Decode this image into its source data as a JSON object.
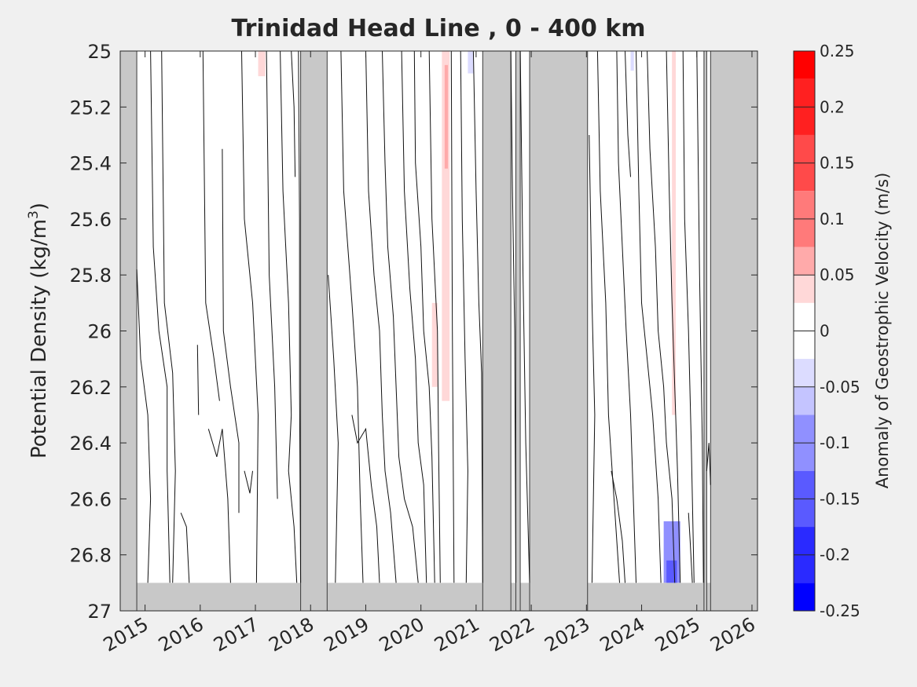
{
  "chart_data": {
    "type": "heatmap",
    "title": "Trinidad Head Line , 0 - 400 km",
    "ylabel_main": "Potential Density (kg/m",
    "ylabel_sup": "3",
    "ylabel_tail": ")",
    "colorbar_label": "Anomaly of Geostrophic Velocity (m/s)",
    "xlim": [
      2014.55,
      2026.1
    ],
    "ylim": [
      25,
      27
    ],
    "y_reversed": true,
    "x_ticks": [
      2015,
      2016,
      2017,
      2018,
      2019,
      2020,
      2021,
      2022,
      2023,
      2024,
      2025,
      2026
    ],
    "x_tick_labels": [
      "2015",
      "2016",
      "2017",
      "2018",
      "2019",
      "2020",
      "2021",
      "2022",
      "2023",
      "2024",
      "2025",
      "2026"
    ],
    "y_ticks": [
      25,
      25.2,
      25.4,
      25.6,
      25.8,
      26,
      26.2,
      26.4,
      26.6,
      26.8,
      27
    ],
    "y_tick_labels": [
      "25",
      "25.2",
      "25.4",
      "25.6",
      "25.8",
      "26",
      "26.2",
      "26.4",
      "26.6",
      "26.8",
      "27"
    ],
    "colorbar": {
      "range": [
        -0.25,
        0.25
      ],
      "ticks": [
        0.25,
        0.2,
        0.15,
        0.1,
        0.05,
        0,
        -0.05,
        -0.1,
        -0.15,
        -0.2,
        -0.25
      ],
      "tick_labels": [
        "0.25",
        "0.2",
        "0.15",
        "0.1",
        "0.05",
        "0",
        "-0.05",
        "-0.1",
        "-0.15",
        "-0.2",
        "-0.25"
      ],
      "levels": [
        {
          "from": 0.225,
          "to": 0.25,
          "color": "#ff0000"
        },
        {
          "from": 0.175,
          "to": 0.225,
          "color": "#ff2020"
        },
        {
          "from": 0.125,
          "to": 0.175,
          "color": "#ff4a4a"
        },
        {
          "from": 0.075,
          "to": 0.125,
          "color": "#ff7a7a"
        },
        {
          "from": 0.05,
          "to": 0.075,
          "color": "#ffaaaa"
        },
        {
          "from": 0.025,
          "to": 0.05,
          "color": "#ffd8d8"
        },
        {
          "from": -0.025,
          "to": 0.025,
          "color": "#ffffff"
        },
        {
          "from": -0.05,
          "to": -0.025,
          "color": "#dcdcff"
        },
        {
          "from": -0.075,
          "to": -0.05,
          "color": "#c4c4ff"
        },
        {
          "from": -0.125,
          "to": -0.075,
          "color": "#9090ff"
        },
        {
          "from": -0.175,
          "to": -0.125,
          "color": "#5a5aff"
        },
        {
          "from": -0.225,
          "to": -0.175,
          "color": "#2a2aff"
        },
        {
          "from": -0.25,
          "to": -0.225,
          "color": "#0000ff"
        }
      ]
    },
    "no_data_color": "#c8c8c8",
    "no_data_density_floor": 26.9,
    "no_data_periods": [
      [
        2014.55,
        2014.85
      ],
      [
        2017.82,
        2018.3
      ],
      [
        2021.12,
        2021.63
      ],
      [
        2021.72,
        2021.8
      ],
      [
        2021.97,
        2023.02
      ],
      [
        2025.13,
        2025.18
      ],
      [
        2025.25,
        2026.1
      ]
    ],
    "anomaly_patches": [
      {
        "x0": 2017.05,
        "x1": 2017.18,
        "y0": 25.0,
        "y1": 25.09,
        "value": 0.04
      },
      {
        "x0": 2020.2,
        "x1": 2020.3,
        "y0": 25.9,
        "y1": 26.2,
        "value": 0.03
      },
      {
        "x0": 2020.38,
        "x1": 2020.52,
        "y0": 25.0,
        "y1": 26.25,
        "value": 0.04
      },
      {
        "x0": 2020.43,
        "x1": 2020.49,
        "y0": 25.05,
        "y1": 25.42,
        "value": 0.06
      },
      {
        "x0": 2020.85,
        "x1": 2020.95,
        "y0": 25.0,
        "y1": 25.08,
        "value": -0.04
      },
      {
        "x0": 2023.8,
        "x1": 2023.86,
        "y0": 25.0,
        "y1": 25.07,
        "value": -0.04
      },
      {
        "x0": 2024.55,
        "x1": 2024.62,
        "y0": 25.0,
        "y1": 26.3,
        "value": 0.03
      },
      {
        "x0": 2024.4,
        "x1": 2024.7,
        "y0": 26.68,
        "y1": 26.9,
        "value": -0.08
      },
      {
        "x0": 2024.45,
        "x1": 2024.64,
        "y0": 26.82,
        "y1": 26.9,
        "value": -0.14
      }
    ],
    "zero_contours": [
      [
        [
          2014.85,
          25.78
        ],
        [
          2014.92,
          26.1
        ],
        [
          2015.05,
          26.3
        ],
        [
          2015.1,
          26.6
        ],
        [
          2015.05,
          26.9
        ]
      ],
      [
        [
          2015.1,
          25.0
        ],
        [
          2015.15,
          25.7
        ],
        [
          2015.25,
          26.0
        ],
        [
          2015.4,
          26.2
        ],
        [
          2015.4,
          26.5
        ],
        [
          2015.45,
          26.9
        ]
      ],
      [
        [
          2015.3,
          25.0
        ],
        [
          2015.35,
          25.9
        ],
        [
          2015.5,
          26.15
        ],
        [
          2015.55,
          26.5
        ],
        [
          2015.5,
          26.9
        ]
      ],
      [
        [
          2015.65,
          26.65
        ],
        [
          2015.75,
          26.7
        ],
        [
          2015.8,
          26.9
        ]
      ],
      [
        [
          2015.95,
          26.05
        ],
        [
          2015.97,
          26.3
        ]
      ],
      [
        [
          2016.15,
          26.35
        ],
        [
          2016.3,
          26.45
        ],
        [
          2016.4,
          26.35
        ],
        [
          2016.5,
          26.6
        ],
        [
          2016.55,
          26.9
        ]
      ],
      [
        [
          2016.05,
          25.0
        ],
        [
          2016.1,
          25.9
        ],
        [
          2016.25,
          26.1
        ],
        [
          2016.35,
          26.25
        ]
      ],
      [
        [
          2016.4,
          25.35
        ],
        [
          2016.42,
          26.0
        ],
        [
          2016.55,
          26.2
        ],
        [
          2016.7,
          26.4
        ],
        [
          2016.7,
          26.65
        ]
      ],
      [
        [
          2016.75,
          25.0
        ],
        [
          2016.8,
          25.6
        ],
        [
          2016.95,
          25.9
        ],
        [
          2017.05,
          26.3
        ],
        [
          2017.02,
          26.9
        ]
      ],
      [
        [
          2016.8,
          26.5
        ],
        [
          2016.9,
          26.58
        ],
        [
          2016.95,
          26.5
        ]
      ],
      [
        [
          2017.2,
          25.0
        ],
        [
          2017.25,
          25.8
        ],
        [
          2017.35,
          26.2
        ],
        [
          2017.4,
          26.6
        ]
      ],
      [
        [
          2017.45,
          25.0
        ],
        [
          2017.5,
          25.5
        ],
        [
          2017.6,
          25.9
        ],
        [
          2017.65,
          26.3
        ],
        [
          2017.6,
          26.5
        ],
        [
          2017.7,
          26.7
        ],
        [
          2017.75,
          26.9
        ]
      ],
      [
        [
          2017.65,
          25.0
        ],
        [
          2017.7,
          25.2
        ],
        [
          2017.72,
          25.45
        ]
      ],
      [
        [
          2017.78,
          25.0
        ],
        [
          2017.8,
          25.6
        ],
        [
          2017.8,
          26.2
        ],
        [
          2017.82,
          26.9
        ]
      ],
      [
        [
          2018.32,
          25.8
        ],
        [
          2018.42,
          26.1
        ],
        [
          2018.5,
          26.4
        ],
        [
          2018.45,
          26.9
        ]
      ],
      [
        [
          2018.55,
          25.0
        ],
        [
          2018.6,
          25.5
        ],
        [
          2018.75,
          25.9
        ],
        [
          2018.85,
          26.2
        ],
        [
          2018.9,
          26.6
        ],
        [
          2018.95,
          26.9
        ]
      ],
      [
        [
          2018.75,
          26.3
        ],
        [
          2018.85,
          26.4
        ],
        [
          2019.0,
          26.35
        ],
        [
          2019.1,
          26.55
        ],
        [
          2019.2,
          26.7
        ],
        [
          2019.25,
          26.9
        ]
      ],
      [
        [
          2019.0,
          25.0
        ],
        [
          2019.05,
          25.5
        ],
        [
          2019.15,
          25.8
        ],
        [
          2019.25,
          26.0
        ],
        [
          2019.3,
          26.3
        ],
        [
          2019.35,
          26.5
        ],
        [
          2019.45,
          26.65
        ],
        [
          2019.55,
          26.9
        ]
      ],
      [
        [
          2019.3,
          25.0
        ],
        [
          2019.35,
          25.4
        ],
        [
          2019.4,
          25.7
        ],
        [
          2019.5,
          25.95
        ],
        [
          2019.55,
          26.2
        ],
        [
          2019.6,
          26.45
        ],
        [
          2019.7,
          26.6
        ],
        [
          2019.85,
          26.7
        ],
        [
          2019.95,
          26.9
        ]
      ],
      [
        [
          2019.65,
          25.0
        ],
        [
          2019.7,
          25.5
        ],
        [
          2019.8,
          25.85
        ],
        [
          2019.9,
          26.1
        ],
        [
          2019.95,
          26.4
        ],
        [
          2020.05,
          26.55
        ],
        [
          2020.1,
          26.9
        ]
      ],
      [
        [
          2019.88,
          25.0
        ],
        [
          2019.9,
          25.4
        ],
        [
          2020.0,
          25.7
        ],
        [
          2020.05,
          26.0
        ],
        [
          2020.15,
          26.2
        ],
        [
          2020.2,
          26.45
        ],
        [
          2020.25,
          26.9
        ]
      ],
      [
        [
          2020.15,
          25.0
        ],
        [
          2020.2,
          25.6
        ],
        [
          2020.3,
          26.0
        ],
        [
          2020.32,
          26.4
        ],
        [
          2020.35,
          26.9
        ]
      ],
      [
        [
          2020.55,
          25.0
        ],
        [
          2020.57,
          26.0
        ],
        [
          2020.6,
          26.9
        ]
      ],
      [
        [
          2020.72,
          25.0
        ],
        [
          2020.75,
          25.6
        ],
        [
          2020.8,
          26.1
        ],
        [
          2020.85,
          26.5
        ],
        [
          2020.82,
          26.9
        ]
      ],
      [
        [
          2020.95,
          25.0
        ],
        [
          2021.0,
          25.5
        ],
        [
          2021.05,
          25.9
        ],
        [
          2021.1,
          26.15
        ],
        [
          2021.12,
          26.9
        ]
      ],
      [
        [
          2021.63,
          25.0
        ],
        [
          2021.66,
          25.5
        ],
        [
          2021.7,
          26.0
        ],
        [
          2021.72,
          26.9
        ]
      ],
      [
        [
          2021.8,
          25.0
        ],
        [
          2021.85,
          25.8
        ],
        [
          2021.9,
          26.4
        ],
        [
          2021.97,
          26.9
        ]
      ],
      [
        [
          2023.05,
          25.3
        ],
        [
          2023.1,
          25.9
        ],
        [
          2023.15,
          26.3
        ],
        [
          2023.1,
          26.9
        ]
      ],
      [
        [
          2023.2,
          25.0
        ],
        [
          2023.25,
          25.5
        ],
        [
          2023.35,
          25.9
        ],
        [
          2023.4,
          26.3
        ],
        [
          2023.5,
          26.6
        ],
        [
          2023.6,
          26.9
        ]
      ],
      [
        [
          2023.45,
          26.5
        ],
        [
          2023.55,
          26.6
        ],
        [
          2023.65,
          26.75
        ],
        [
          2023.7,
          26.9
        ]
      ],
      [
        [
          2023.55,
          25.0
        ],
        [
          2023.58,
          25.4
        ],
        [
          2023.65,
          25.7
        ],
        [
          2023.72,
          26.0
        ],
        [
          2023.8,
          26.3
        ],
        [
          2023.85,
          26.6
        ],
        [
          2023.9,
          26.9
        ]
      ],
      [
        [
          2023.7,
          25.0
        ],
        [
          2023.75,
          25.3
        ],
        [
          2023.8,
          25.45
        ]
      ],
      [
        [
          2023.9,
          25.0
        ],
        [
          2023.95,
          25.5
        ],
        [
          2024.0,
          25.9
        ],
        [
          2024.1,
          26.1
        ],
        [
          2024.2,
          26.3
        ],
        [
          2024.3,
          26.6
        ],
        [
          2024.35,
          26.9
        ]
      ],
      [
        [
          2024.1,
          25.0
        ],
        [
          2024.15,
          25.35
        ],
        [
          2024.25,
          25.7
        ],
        [
          2024.3,
          26.0
        ],
        [
          2024.4,
          26.2
        ],
        [
          2024.45,
          26.4
        ],
        [
          2024.55,
          26.6
        ],
        [
          2024.6,
          26.9
        ]
      ],
      [
        [
          2024.45,
          25.0
        ],
        [
          2024.5,
          25.5
        ],
        [
          2024.55,
          25.9
        ],
        [
          2024.6,
          26.2
        ],
        [
          2024.65,
          26.5
        ],
        [
          2024.7,
          26.9
        ]
      ],
      [
        [
          2024.75,
          25.0
        ],
        [
          2024.78,
          25.6
        ],
        [
          2024.85,
          26.0
        ],
        [
          2024.9,
          26.4
        ],
        [
          2024.95,
          26.9
        ]
      ],
      [
        [
          2025.0,
          25.0
        ],
        [
          2025.05,
          25.8
        ],
        [
          2025.1,
          26.4
        ],
        [
          2025.12,
          26.9
        ]
      ],
      [
        [
          2025.18,
          26.5
        ],
        [
          2025.22,
          26.4
        ],
        [
          2025.25,
          26.55
        ]
      ],
      [
        [
          2024.85,
          26.65
        ],
        [
          2024.88,
          26.75
        ],
        [
          2024.92,
          26.9
        ]
      ]
    ]
  }
}
